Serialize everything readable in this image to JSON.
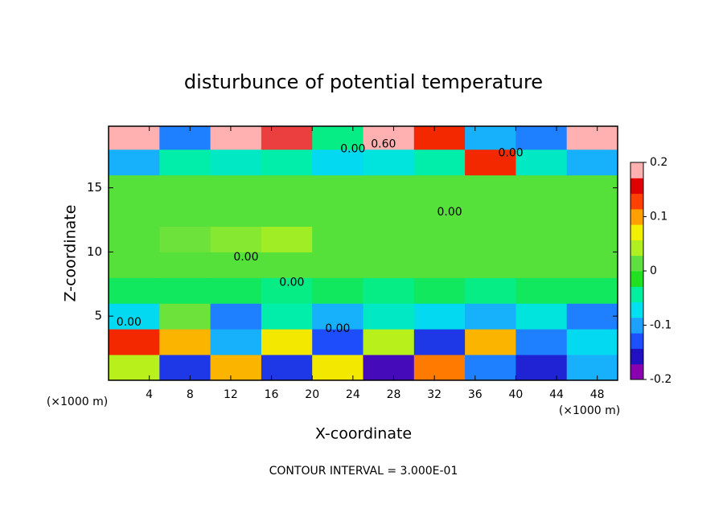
{
  "chart_data": {
    "type": "heatmap",
    "title": "disturbunce of potential temperature",
    "x_label": "X-coordinate",
    "y_label": "Z-coordinate",
    "x_unit": "(×1000 m)",
    "x_unit_right": "(×1000 m)",
    "footer": "CONTOUR INTERVAL = 3.000E-01",
    "xlim": [
      0,
      50
    ],
    "ylim": [
      0,
      19.8
    ],
    "xticks": [
      4,
      8,
      12,
      16,
      20,
      24,
      28,
      32,
      36,
      40,
      44,
      48
    ],
    "yticks": [
      5,
      10,
      15
    ],
    "x": [
      2.5,
      7.5,
      12.5,
      17.5,
      22.5,
      27.5,
      32.5,
      37.5,
      42.5,
      47.5
    ],
    "y": [
      1,
      3,
      5,
      7,
      9,
      11,
      13,
      15,
      17,
      19
    ],
    "z": [
      [
        0.05,
        -0.15,
        0.1,
        -0.15,
        0.08,
        -0.18,
        0.12,
        -0.12,
        -0.16,
        -0.1
      ],
      [
        0.15,
        0.1,
        -0.1,
        0.08,
        -0.14,
        0.05,
        -0.15,
        0.1,
        -0.12,
        -0.08
      ],
      [
        -0.08,
        0.02,
        -0.12,
        -0.05,
        -0.1,
        -0.06,
        -0.08,
        -0.1,
        -0.07,
        -0.12
      ],
      [
        -0.03,
        -0.03,
        -0.03,
        -0.04,
        -0.03,
        -0.04,
        -0.03,
        -0.04,
        -0.03,
        -0.03
      ],
      [
        0.01,
        0.01,
        0.01,
        0.01,
        0.01,
        0.01,
        0.01,
        0.01,
        0.01,
        0.01
      ],
      [
        0.01,
        0.02,
        0.03,
        0.04,
        0.01,
        0.01,
        0.01,
        0.01,
        0.01,
        0.01
      ],
      [
        0.01,
        0.01,
        0.01,
        0.01,
        0.01,
        0.01,
        0.01,
        0.01,
        0.01,
        0.01
      ],
      [
        0.01,
        0.01,
        0.01,
        0.01,
        0.01,
        0.01,
        0.01,
        0.01,
        0.01,
        0.01
      ],
      [
        -0.1,
        -0.05,
        -0.06,
        -0.05,
        -0.08,
        -0.07,
        -0.05,
        0.15,
        -0.06,
        -0.1
      ],
      [
        0.2,
        -0.12,
        0.2,
        0.18,
        -0.04,
        0.2,
        0.15,
        -0.1,
        -0.12,
        0.2
      ]
    ],
    "clim": [
      -0.2,
      0.2
    ],
    "cticks": [
      -0.2,
      -0.1,
      0,
      0.1,
      0.2
    ],
    "colorscale": [
      "#8a00b0",
      "#2010c0",
      "#1e50ff",
      "#1ea0ff",
      "#00e0f0",
      "#00f0a0",
      "#20e020",
      "#60e040",
      "#b0f020",
      "#f0f000",
      "#ffa000",
      "#ff4000",
      "#e00000",
      "#ffb0b0"
    ],
    "annotations": [
      {
        "text": "0.60",
        "x": 27,
        "y": 18.4
      },
      {
        "text": "0.00",
        "x": 24,
        "y": 18.0
      },
      {
        "text": "0.00",
        "x": 39.5,
        "y": 17.7
      },
      {
        "text": "0.00",
        "x": 33.5,
        "y": 13.1
      },
      {
        "text": "0.00",
        "x": 13.5,
        "y": 9.6
      },
      {
        "text": "0.00",
        "x": 18,
        "y": 7.6
      },
      {
        "text": "0.00",
        "x": 2,
        "y": 4.5
      },
      {
        "text": "0.00",
        "x": 22.5,
        "y": 4.0
      }
    ]
  }
}
